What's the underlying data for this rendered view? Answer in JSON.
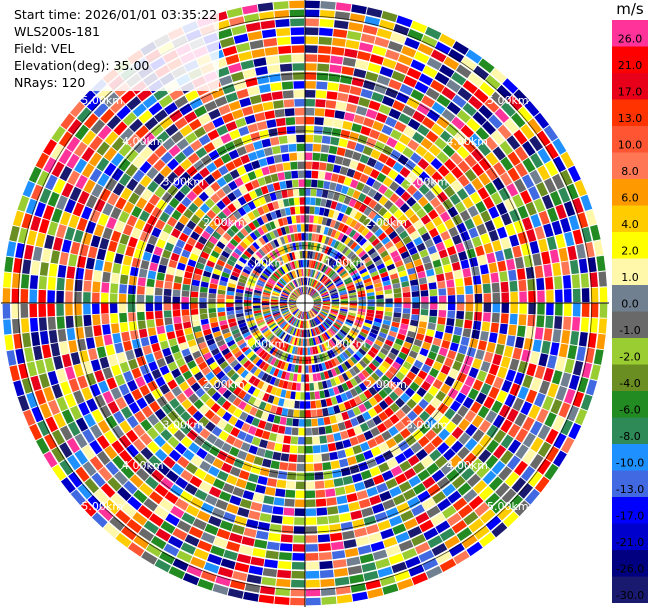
{
  "info": {
    "start_time": "Start time: 2026/01/01 03:35:22",
    "instrument": "WLS200s-181",
    "field": "Field: VEL",
    "elevation": "Elevation(deg): 35.00",
    "nrays": "NRays: 120"
  },
  "colorbar": {
    "unit": "m/s",
    "bins": [
      {
        "label": "26.0",
        "color": "#ff3399"
      },
      {
        "label": "21.0",
        "color": "#ff0000"
      },
      {
        "label": "17.0",
        "color": "#e8001a"
      },
      {
        "label": "13.0",
        "color": "#ff3300"
      },
      {
        "label": "10.0",
        "color": "#ff5533"
      },
      {
        "label": "8.0",
        "color": "#ff7755"
      },
      {
        "label": "6.0",
        "color": "#ff9900"
      },
      {
        "label": "4.0",
        "color": "#ffcc00"
      },
      {
        "label": "2.0",
        "color": "#ffff00"
      },
      {
        "label": "1.0",
        "color": "#fff7aa"
      },
      {
        "label": "0.0",
        "color": "#708090"
      },
      {
        "label": "-1.0",
        "color": "#696969"
      },
      {
        "label": "-2.0",
        "color": "#9acd32"
      },
      {
        "label": "-4.0",
        "color": "#6b8e23"
      },
      {
        "label": "-6.0",
        "color": "#228b22"
      },
      {
        "label": "-8.0",
        "color": "#2e8b57"
      },
      {
        "label": "-10.0",
        "color": "#1e90ff"
      },
      {
        "label": "-13.0",
        "color": "#4169e1"
      },
      {
        "label": "-17.0",
        "color": "#0000ff"
      },
      {
        "label": "-21.0",
        "color": "#0000cd"
      },
      {
        "label": "-26.0",
        "color": "#000080"
      },
      {
        "label": "-30.0",
        "color": "#191970"
      }
    ]
  },
  "range_rings": [
    "1.00km",
    "2.00km",
    "3.00km",
    "4.00km",
    "5.00km"
  ],
  "chart_data": {
    "type": "heatmap",
    "projection": "polar (PPI)",
    "field": "VEL",
    "units": "m/s",
    "nrays": 120,
    "elevation_deg": 35.0,
    "range_rings_km": [
      1,
      2,
      3,
      4,
      5
    ],
    "color_levels": [
      26.0,
      21.0,
      17.0,
      13.0,
      10.0,
      8.0,
      6.0,
      4.0,
      2.0,
      1.0,
      0.0,
      -1.0,
      -2.0,
      -4.0,
      -6.0,
      -8.0,
      -10.0,
      -13.0,
      -17.0,
      -21.0,
      -26.0,
      -30.0
    ],
    "grid": true
  }
}
